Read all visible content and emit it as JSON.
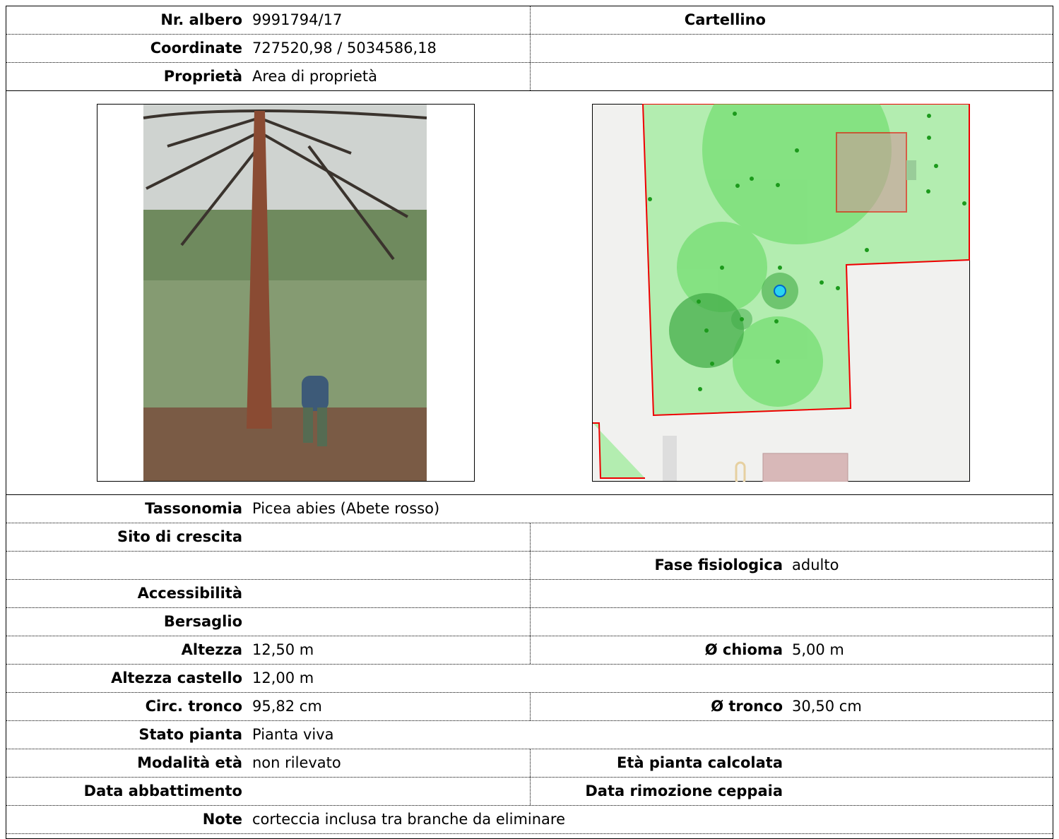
{
  "header": {
    "rows": [
      {
        "label": "Nr. albero",
        "value": "9991794/17",
        "right_label": "Cartellino"
      },
      {
        "label": "Coordinate",
        "value": "727520,98 / 5034586,18"
      },
      {
        "label": "Proprietà",
        "value": "Area di proprietà"
      }
    ]
  },
  "details": {
    "rows": [
      {
        "label": "Tassonomia",
        "value": "Picea abies (Abete rosso)"
      },
      {
        "label": "Sito di crescita"
      },
      {
        "right_label": "Fase fisiologica",
        "right_value": "adulto"
      },
      {
        "label": "Accessibilità"
      },
      {
        "label": "Bersaglio"
      },
      {
        "label": "Altezza",
        "value": "12,50 m",
        "right_label": "Ø chioma",
        "right_value": "5,00 m"
      },
      {
        "label": "Altezza castello",
        "value": "12,00 m"
      },
      {
        "label": "Circ. tronco",
        "value": "95,82 cm",
        "right_label": "Ø tronco",
        "right_value": "30,50 cm"
      },
      {
        "label": "Stato pianta",
        "value": "Pianta viva"
      },
      {
        "label": "Modalità età",
        "value": "non rilevato",
        "right_label": "Età pianta calcolata"
      },
      {
        "label": "Data abbattimento",
        "right_label": "Data rimozione ceppaia"
      },
      {
        "label": "Note",
        "value": "corteccia inclusa tra branche da eliminare"
      }
    ]
  }
}
